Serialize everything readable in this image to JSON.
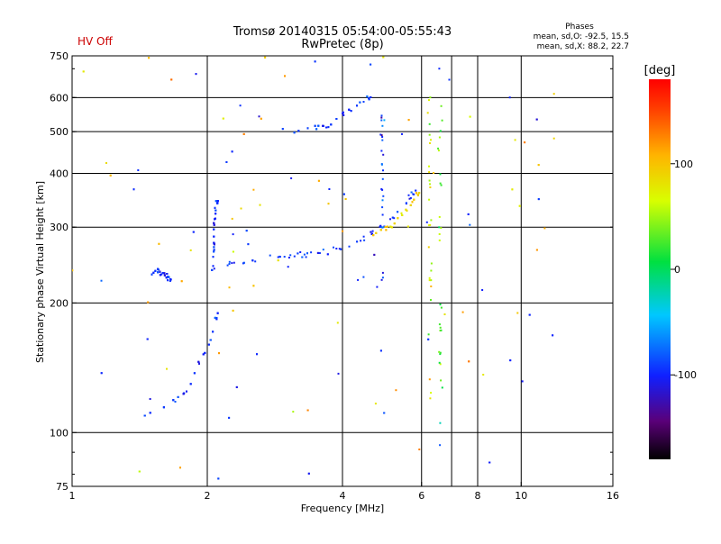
{
  "header": {
    "status_label": "HV Off",
    "title_line1": "Tromsø 20140315 05:54:00-05:55:43",
    "title_line2": "RwPretec (8p)",
    "phase_title": "Phases",
    "phase_o_stats": "mean, sd,O: -92.5, 15.5",
    "phase_x_stats": "mean, sd,X:  88.2, 22.7"
  },
  "colors": {
    "status_text": "#cc0000",
    "grid": "#000000",
    "text": "#000000"
  },
  "colorbar": {
    "unit_label": "[deg]",
    "range": [
      -180,
      180
    ],
    "ticks": [
      {
        "value": 100,
        "label": "100"
      },
      {
        "value": 0,
        "label": "0"
      },
      {
        "value": -100,
        "label": "-100"
      }
    ]
  },
  "chart_data": {
    "type": "scatter",
    "title": "Tromsø 20140315 05:54:00-05:55:43",
    "subtitle": "RwPretec (8p)",
    "xlabel": "Frequency [MHz]",
    "ylabel": "Stationary phase Virtual Height [km]",
    "xscale": "log",
    "yscale": "log",
    "xlim": [
      1,
      16
    ],
    "ylim": [
      75,
      750
    ],
    "x_ticks": [
      {
        "value": 1,
        "label": "1"
      },
      {
        "value": 2,
        "label": "2"
      },
      {
        "value": 4,
        "label": "4"
      },
      {
        "value": 6,
        "label": "6"
      },
      {
        "value": 8,
        "label": "8"
      },
      {
        "value": 10,
        "label": "10"
      },
      {
        "value": 16,
        "label": "16"
      }
    ],
    "x_grid": [
      2,
      4,
      6,
      7,
      8,
      10,
      16
    ],
    "y_ticks": [
      {
        "value": 75,
        "label": "75"
      },
      {
        "value": 100,
        "label": "100"
      },
      {
        "value": 200,
        "label": "200"
      },
      {
        "value": 300,
        "label": "300"
      },
      {
        "value": 400,
        "label": "400"
      },
      {
        "value": 500,
        "label": "500"
      },
      {
        "value": 600,
        "label": "600"
      },
      {
        "value": 750,
        "label": "750"
      }
    ],
    "y_grid": [
      100,
      200,
      300,
      400,
      500,
      600
    ],
    "traces": [
      {
        "name": "o-mode F-layer trace",
        "phase": -95,
        "spread": 6,
        "points": [
          [
            2.06,
            240
          ],
          [
            2.3,
            248
          ],
          [
            2.6,
            252
          ],
          [
            3.0,
            256
          ],
          [
            3.4,
            260
          ],
          [
            3.8,
            266
          ],
          [
            4.3,
            276
          ],
          [
            4.7,
            292
          ],
          [
            5.0,
            306
          ],
          [
            5.3,
            324
          ],
          [
            5.6,
            346
          ],
          [
            5.8,
            365
          ]
        ]
      },
      {
        "name": "x-mode F-layer trace",
        "phase": 88,
        "spread": 5,
        "points": [
          [
            4.5,
            284
          ],
          [
            4.8,
            292
          ],
          [
            5.1,
            302
          ],
          [
            5.4,
            318
          ],
          [
            5.7,
            340
          ],
          [
            5.9,
            360
          ]
        ]
      },
      {
        "name": "E/Es trace",
        "phase": -98,
        "spread": 5,
        "points": [
          [
            1.3,
            108
          ],
          [
            1.45,
            110
          ],
          [
            1.6,
            114
          ],
          [
            1.75,
            122
          ],
          [
            1.85,
            132
          ],
          [
            1.92,
            145
          ],
          [
            2.0,
            158
          ],
          [
            2.06,
            168
          ],
          [
            2.1,
            190
          ]
        ]
      },
      {
        "name": "vertical spread near 2 MHz",
        "phase": -100,
        "spread": 5,
        "points": [
          [
            2.04,
            225
          ],
          [
            2.06,
            255
          ],
          [
            2.07,
            290
          ],
          [
            2.08,
            320
          ],
          [
            2.1,
            345
          ]
        ]
      },
      {
        "name": "oblique echo 500 km",
        "phase": -95,
        "spread": 5,
        "points": [
          [
            2.9,
            495
          ],
          [
            3.2,
            502
          ],
          [
            3.5,
            512
          ],
          [
            3.8,
            525
          ],
          [
            4.1,
            555
          ],
          [
            4.4,
            585
          ],
          [
            4.6,
            600
          ]
        ]
      },
      {
        "name": "cluster near 1.5 MHz",
        "phase": -100,
        "spread": 5,
        "points": [
          [
            1.48,
            232
          ],
          [
            1.55,
            238
          ],
          [
            1.62,
            232
          ],
          [
            1.65,
            226
          ]
        ]
      }
    ],
    "columns": [
      {
        "name": "vertical streak 4.9 MHz",
        "x": 4.9,
        "y_range": [
          220,
          560
        ],
        "phase": -95
      },
      {
        "name": "vertical streak 6.3 MHz",
        "x": 6.25,
        "y_range": [
          120,
          650
        ],
        "phase": 60
      },
      {
        "name": "vertical streak 6.6 MHz",
        "x": 6.6,
        "y_range": [
          95,
          600
        ],
        "phase": 20
      }
    ],
    "scatter_counts": {
      "trace_points": 480,
      "noise_points": 180
    }
  }
}
